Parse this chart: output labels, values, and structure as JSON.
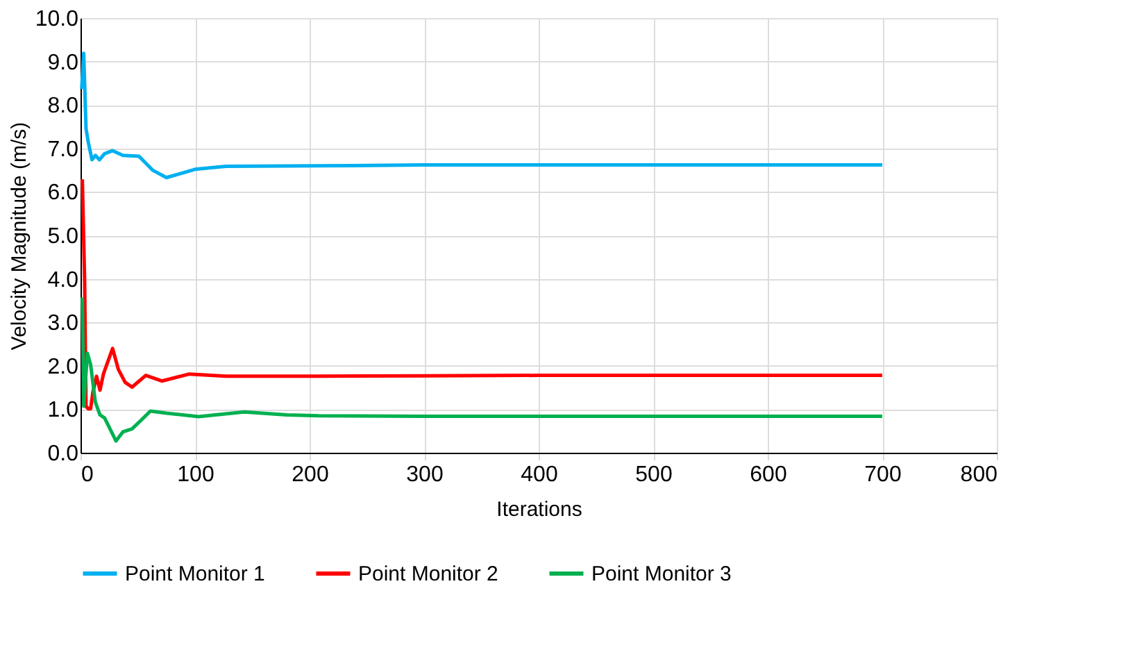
{
  "chart_data": {
    "type": "line",
    "xlabel": "Iterations",
    "ylabel": "Velocity Magnitude (m/s)",
    "xlim": [
      0,
      800
    ],
    "xticks": [
      0,
      100,
      200,
      300,
      400,
      500,
      600,
      700,
      800
    ],
    "ylim": [
      0,
      10
    ],
    "yticks": [
      {
        "value": 0,
        "label": "0.0"
      },
      {
        "value": 1,
        "label": "1.0"
      },
      {
        "value": 2,
        "label": "2.0"
      },
      {
        "value": 3,
        "label": "3.0"
      },
      {
        "value": 4,
        "label": "4.0"
      },
      {
        "value": 5,
        "label": "5.0"
      },
      {
        "value": 6,
        "label": "6.0"
      },
      {
        "value": 7,
        "label": "7.0"
      },
      {
        "value": 8,
        "label": "8.0"
      },
      {
        "value": 9,
        "label": "9.0"
      },
      {
        "value": 10,
        "label": "10.0"
      }
    ],
    "grid": true,
    "legend": "bottom",
    "marker": "none",
    "line_style": "solid",
    "series": [
      {
        "name": "Point Monitor 1",
        "color": "#00b0f0",
        "x": [
          1,
          2.8,
          4.8,
          6.8,
          10,
          13,
          16.5,
          21,
          28,
          37,
          51,
          63,
          75,
          87,
          100,
          127,
          208,
          300,
          400,
          500,
          600,
          700
        ],
        "values": [
          8.37,
          9.19,
          7.46,
          7.14,
          6.74,
          6.84,
          6.74,
          6.88,
          6.95,
          6.84,
          6.82,
          6.5,
          6.33,
          6.42,
          6.52,
          6.59,
          6.6,
          6.62,
          6.62,
          6.62,
          6.62,
          6.62
        ]
      },
      {
        "name": "Point Monitor 2",
        "color": "#ff0000",
        "x": [
          1.6,
          3.6,
          4.8,
          6.8,
          8.8,
          10.8,
          14,
          17,
          20,
          28,
          33,
          39,
          45,
          57,
          71,
          95,
          127,
          208,
          300,
          400,
          500,
          600,
          700
        ],
        "values": [
          6.29,
          3.94,
          1.07,
          1.01,
          1.01,
          1.39,
          1.76,
          1.44,
          1.81,
          2.4,
          1.92,
          1.62,
          1.51,
          1.78,
          1.65,
          1.81,
          1.76,
          1.76,
          1.77,
          1.78,
          1.78,
          1.78,
          1.78
        ]
      },
      {
        "name": "Point Monitor 3",
        "color": "#00b050",
        "x": [
          1.6,
          2.8,
          6,
          8.8,
          12.9,
          17,
          21,
          31,
          37,
          45,
          53,
          61,
          75,
          103,
          143,
          180,
          208,
          300,
          400,
          500,
          600,
          700
        ],
        "values": [
          3.57,
          1.07,
          2.29,
          2.03,
          1.17,
          0.87,
          0.8,
          0.27,
          0.48,
          0.55,
          0.75,
          0.96,
          0.91,
          0.83,
          0.94,
          0.87,
          0.85,
          0.84,
          0.84,
          0.84,
          0.84,
          0.84
        ]
      }
    ]
  }
}
